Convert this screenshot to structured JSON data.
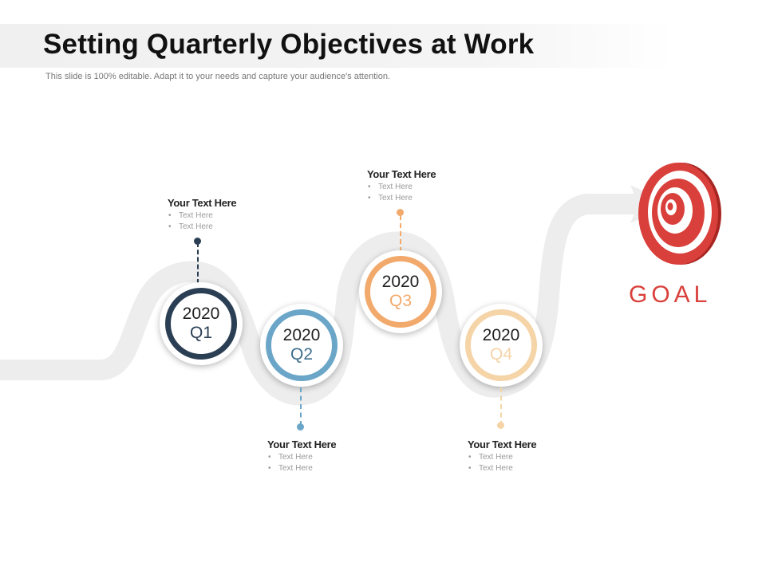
{
  "header": {
    "title": "Setting Quarterly Objectives at Work",
    "subtitle": "This slide is 100% editable. Adapt it to your needs and capture your audience's attention."
  },
  "colors": {
    "road": "#ededed",
    "q1": "#2b3f54",
    "q2": "#6ba6c8",
    "q3": "#f2a96c",
    "q4": "#f5d4a7",
    "goal": "#d9403b"
  },
  "milestones": [
    {
      "year": "2020",
      "quarter": "Q1",
      "heading": "Your Text Here",
      "bullets": [
        "Text Here",
        "Text Here"
      ]
    },
    {
      "year": "2020",
      "quarter": "Q2",
      "heading": "Your Text Here",
      "bullets": [
        "Text Here",
        "Text Here"
      ]
    },
    {
      "year": "2020",
      "quarter": "Q3",
      "heading": "Your Text Here",
      "bullets": [
        "Text Here",
        "Text Here"
      ]
    },
    {
      "year": "2020",
      "quarter": "Q4",
      "heading": "Your Text Here",
      "bullets": [
        "Text Here",
        "Text Here"
      ]
    }
  ],
  "goal": {
    "label": "GOAL",
    "icon": "target-icon"
  }
}
